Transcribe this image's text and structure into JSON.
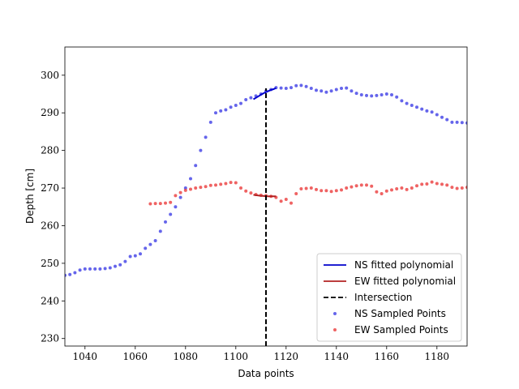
{
  "chart_data": {
    "type": "scatter",
    "title": "",
    "xlabel": "Data points",
    "ylabel": "Depth [cm]",
    "xlim": [
      1032,
      1192
    ],
    "ylim": [
      228,
      307.5
    ],
    "xticks": [
      1040,
      1060,
      1080,
      1100,
      1120,
      1140,
      1160,
      1180
    ],
    "yticks": [
      230,
      240,
      250,
      260,
      270,
      280,
      290,
      300
    ],
    "grid": false,
    "legend_position": "lower-right",
    "legend": [
      "NS fitted polynomial",
      "EW fitted polynomial",
      "Intersection",
      "NS Sampled Points",
      "EW Sampled Points"
    ],
    "colors": {
      "ns": "#0000cc",
      "ew": "#b22222",
      "ns_points": "#3f3fe6",
      "ew_points": "#eb3c3c",
      "intersection": "#000000"
    },
    "ns_points": {
      "x": [
        1032,
        1034,
        1036,
        1038,
        1040,
        1042,
        1044,
        1046,
        1048,
        1050,
        1052,
        1054,
        1056,
        1058,
        1060,
        1062,
        1064,
        1066,
        1068,
        1070,
        1072,
        1074,
        1076,
        1078,
        1080,
        1082,
        1084,
        1086,
        1088,
        1090,
        1092,
        1094,
        1096,
        1098,
        1100,
        1102,
        1104,
        1106,
        1108,
        1110,
        1112,
        1114,
        1116,
        1118,
        1120,
        1122,
        1124,
        1126,
        1128,
        1130,
        1132,
        1134,
        1136,
        1138,
        1140,
        1142,
        1144,
        1146,
        1148,
        1150,
        1152,
        1154,
        1156,
        1158,
        1160,
        1162,
        1164,
        1166,
        1168,
        1170,
        1172,
        1174,
        1176,
        1178,
        1180,
        1182,
        1184,
        1186,
        1188,
        1190,
        1192
      ],
      "y": [
        246.8,
        247.0,
        247.5,
        248.2,
        248.5,
        248.5,
        248.5,
        248.5,
        248.6,
        248.8,
        249.2,
        249.6,
        250.5,
        251.8,
        252.0,
        252.5,
        254.0,
        255.0,
        256.0,
        258.5,
        261.0,
        263.0,
        265.0,
        267.5,
        270.0,
        272.5,
        276.0,
        280.0,
        283.5,
        287.5,
        290.0,
        290.5,
        290.8,
        291.5,
        292.0,
        292.5,
        293.5,
        294.0,
        294.5,
        295.0,
        295.8,
        296.2,
        296.7,
        296.6,
        296.5,
        296.7,
        297.2,
        297.3,
        297.0,
        296.5,
        296.0,
        295.8,
        295.5,
        295.8,
        296.2,
        296.5,
        296.6,
        295.8,
        295.2,
        294.8,
        294.6,
        294.5,
        294.6,
        294.8,
        295.0,
        294.8,
        294.2,
        293.2,
        292.5,
        292.0,
        291.5,
        291.0,
        290.5,
        290.2,
        289.5,
        288.8,
        288.2,
        287.5,
        287.5,
        287.4,
        287.3
      ]
    },
    "ew_points": {
      "x": [
        1066,
        1068,
        1070,
        1072,
        1074,
        1076,
        1078,
        1080,
        1082,
        1084,
        1086,
        1088,
        1090,
        1092,
        1094,
        1096,
        1098,
        1100,
        1102,
        1104,
        1106,
        1108,
        1110,
        1112,
        1114,
        1116,
        1118,
        1120,
        1122,
        1124,
        1126,
        1128,
        1130,
        1132,
        1134,
        1136,
        1138,
        1140,
        1142,
        1144,
        1146,
        1148,
        1150,
        1152,
        1154,
        1156,
        1158,
        1160,
        1162,
        1164,
        1166,
        1168,
        1170,
        1172,
        1174,
        1176,
        1178,
        1180,
        1182,
        1184,
        1186,
        1188,
        1190,
        1192
      ],
      "y": [
        265.8,
        265.9,
        265.9,
        266.0,
        266.2,
        268.0,
        268.8,
        269.4,
        269.7,
        270.0,
        270.2,
        270.4,
        270.7,
        270.8,
        271.0,
        271.2,
        271.5,
        271.4,
        270.0,
        269.2,
        268.7,
        268.3,
        268.1,
        268.0,
        267.8,
        267.5,
        266.5,
        267.0,
        266.0,
        268.5,
        269.8,
        269.9,
        270.0,
        269.6,
        269.3,
        269.3,
        269.1,
        269.3,
        269.5,
        270.0,
        270.3,
        270.6,
        270.8,
        270.8,
        270.5,
        269.0,
        268.5,
        269.2,
        269.5,
        269.8,
        270.0,
        269.6,
        270.0,
        270.6,
        271.0,
        271.1,
        271.6,
        271.2,
        271.0,
        270.8,
        270.2,
        269.9,
        270.0,
        270.2
      ]
    },
    "ns_fit": {
      "x": [
        1107,
        1108,
        1109,
        1110,
        1111,
        1112,
        1113,
        1114,
        1115,
        1116
      ],
      "y": [
        293.6,
        294.0,
        294.4,
        294.8,
        295.2,
        295.5,
        295.8,
        296.1,
        296.3,
        296.6
      ]
    },
    "ew_fit": {
      "x": [
        1107,
        1108,
        1109,
        1110,
        1111,
        1112,
        1113,
        1114,
        1115,
        1116
      ],
      "y": [
        268.2,
        268.1,
        268.0,
        267.9,
        267.9,
        267.8,
        267.8,
        267.8,
        267.8,
        267.8
      ]
    },
    "intersection": {
      "x": 1112,
      "y_from": 228,
      "y_to": 296.5
    }
  }
}
